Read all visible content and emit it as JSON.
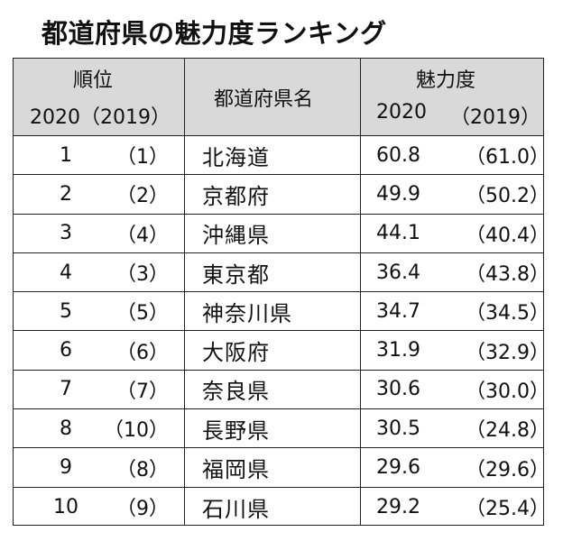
{
  "title": "都道府県の魅力度ランキング",
  "header": {
    "rank_label": "順位",
    "rank_years": "2020（2019）",
    "pref_label": "都道府県名",
    "score_label": "魅力度",
    "score_2020": "2020",
    "score_2019": "（2019）"
  },
  "rows": [
    {
      "rank": "1",
      "prev": "（1）",
      "name": "北海道",
      "s2020": "60.8",
      "s2019": "（61.0）"
    },
    {
      "rank": "2",
      "prev": "（2）",
      "name": "京都府",
      "s2020": "49.9",
      "s2019": "（50.2）"
    },
    {
      "rank": "3",
      "prev": "（4）",
      "name": "沖縄県",
      "s2020": "44.1",
      "s2019": "（40.4）"
    },
    {
      "rank": "4",
      "prev": "（3）",
      "name": "東京都",
      "s2020": "36.4",
      "s2019": "（43.8）"
    },
    {
      "rank": "5",
      "prev": "（5）",
      "name": "神奈川県",
      "s2020": "34.7",
      "s2019": "（34.5）"
    },
    {
      "rank": "6",
      "prev": "（6）",
      "name": "大阪府",
      "s2020": "31.9",
      "s2019": "（32.9）"
    },
    {
      "rank": "7",
      "prev": "（7）",
      "name": "奈良県",
      "s2020": "30.6",
      "s2019": "（30.0）"
    },
    {
      "rank": "8",
      "prev": "（10）",
      "name": "長野県",
      "s2020": "30.5",
      "s2019": "（24.8）"
    },
    {
      "rank": "9",
      "prev": "（8）",
      "name": "福岡県",
      "s2020": "29.6",
      "s2019": "（29.6）"
    },
    {
      "rank": "10",
      "prev": "（9）",
      "name": "石川県",
      "s2020": "29.2",
      "s2019": "（25.4）"
    }
  ]
}
